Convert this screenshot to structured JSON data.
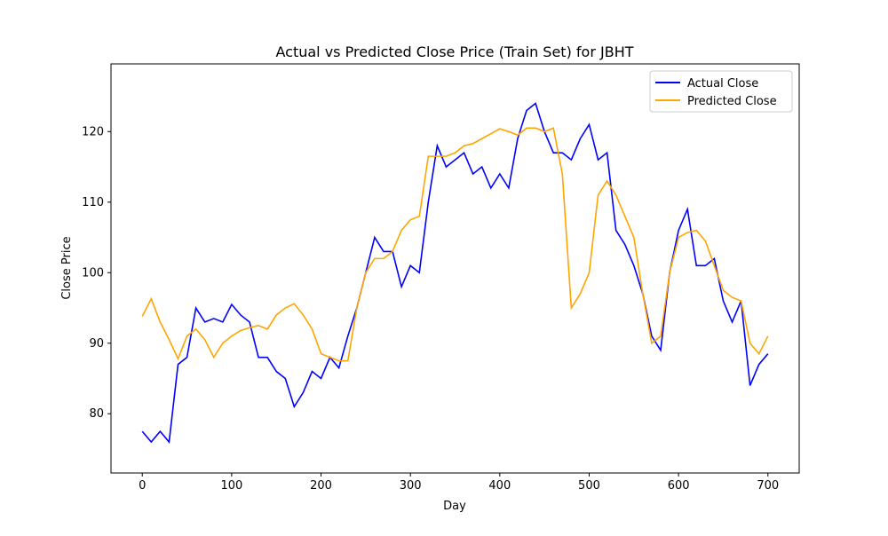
{
  "chart_data": {
    "type": "line",
    "title": "Actual vs Predicted Close Price (Train Set) for JBHT",
    "x_label": "Day",
    "y_label": "Close Price",
    "x": [
      0,
      10,
      20,
      30,
      40,
      50,
      60,
      70,
      80,
      90,
      100,
      110,
      120,
      130,
      140,
      150,
      160,
      170,
      180,
      190,
      200,
      210,
      220,
      230,
      240,
      250,
      260,
      270,
      280,
      290,
      300,
      310,
      320,
      330,
      340,
      350,
      360,
      370,
      380,
      390,
      400,
      410,
      420,
      430,
      440,
      450,
      460,
      470,
      480,
      490,
      500,
      510,
      520,
      530,
      540,
      550,
      560,
      570,
      580,
      590,
      600,
      610,
      620,
      630,
      640,
      650,
      660,
      670,
      680,
      690,
      700
    ],
    "series": [
      {
        "name": "Actual Close",
        "color": "#0000ff",
        "values": [
          77.5,
          76,
          77.5,
          76,
          87,
          88,
          95,
          93,
          93.5,
          93,
          95.5,
          94,
          93,
          88,
          88,
          86,
          85,
          81,
          83,
          86,
          85,
          88,
          86.5,
          91,
          95,
          100,
          105,
          103,
          103,
          98,
          101,
          100,
          110,
          118,
          115,
          116,
          117,
          114,
          115,
          112,
          114,
          112,
          119,
          123,
          124,
          120,
          117,
          117,
          116,
          119,
          121,
          116,
          117,
          106,
          104,
          101,
          97,
          91,
          89,
          100,
          106,
          109,
          101,
          101,
          102,
          96,
          93,
          96,
          84,
          87,
          88.5
        ]
      },
      {
        "name": "Predicted Close",
        "color": "#ffa500",
        "values": [
          93.8,
          96.3,
          93,
          90.5,
          87.8,
          91,
          92,
          90.5,
          88,
          90,
          91,
          91.8,
          92.2,
          92.5,
          92,
          94,
          95,
          95.6,
          94,
          92,
          88.5,
          88,
          87.5,
          87.5,
          95,
          100,
          102,
          102,
          103,
          106,
          107.5,
          108,
          116.5,
          116.5,
          116.5,
          117,
          118,
          118.3,
          119,
          119.7,
          120.4,
          120,
          119.5,
          120.5,
          120.5,
          120,
          120.5,
          114,
          95,
          97,
          100,
          111,
          113,
          111,
          108,
          105,
          97,
          90,
          91,
          100,
          105,
          105.7,
          106,
          104.5,
          101,
          97.5,
          96.5,
          96,
          90,
          88.5,
          91
        ]
      }
    ],
    "xlim": [
      -35,
      735
    ],
    "ylim": [
      71.6,
      129.6
    ],
    "xticks": [
      0,
      100,
      200,
      300,
      400,
      500,
      600,
      700
    ],
    "yticks": [
      80,
      90,
      100,
      110,
      120
    ],
    "legend": "upper right"
  }
}
